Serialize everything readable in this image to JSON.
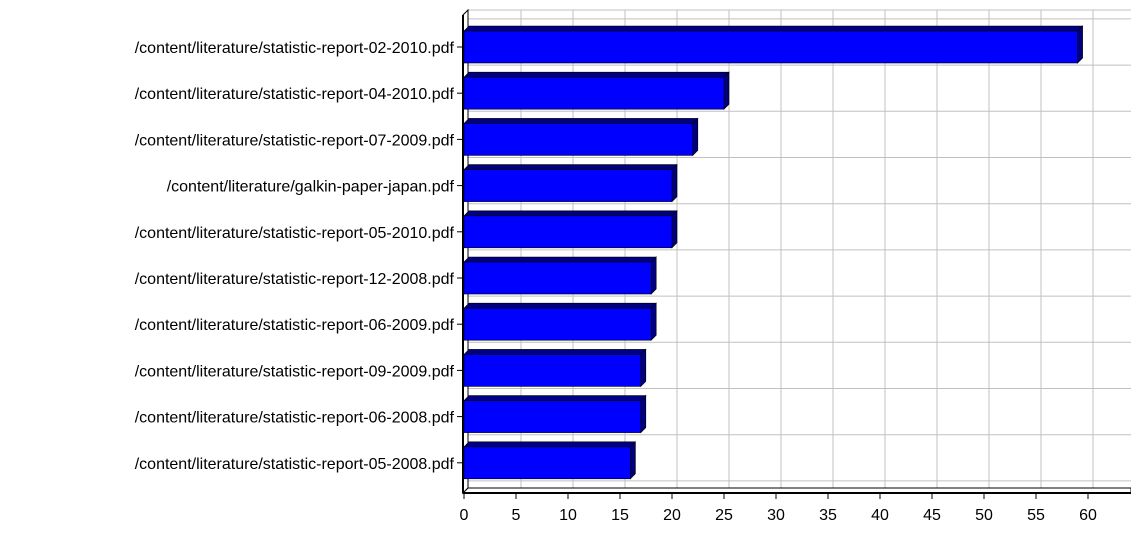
{
  "chart_data": {
    "type": "bar",
    "orientation": "horizontal",
    "categories": [
      "/content/literature/statistic-report-02-2010.pdf",
      "/content/literature/statistic-report-04-2010.pdf",
      "/content/literature/statistic-report-07-2009.pdf",
      "/content/literature/galkin-paper-japan.pdf",
      "/content/literature/statistic-report-05-2010.pdf",
      "/content/literature/statistic-report-12-2008.pdf",
      "/content/literature/statistic-report-06-2009.pdf",
      "/content/literature/statistic-report-09-2009.pdf",
      "/content/literature/statistic-report-06-2008.pdf",
      "/content/literature/statistic-report-05-2008.pdf"
    ],
    "values": [
      59,
      25,
      22,
      20,
      20,
      18,
      18,
      17,
      17,
      16
    ],
    "x_ticks": [
      "0",
      "5",
      "10",
      "15",
      "20",
      "25",
      "30",
      "35",
      "40",
      "45",
      "50",
      "55",
      "60"
    ],
    "xlim": [
      0,
      64
    ],
    "grid": true,
    "bar_color": "#0000ff",
    "bar_shade_color": "#000080",
    "grid_color": "#c0c0c0",
    "title": "",
    "xlabel": "",
    "ylabel": ""
  }
}
